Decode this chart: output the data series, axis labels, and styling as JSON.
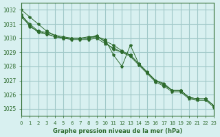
{
  "title": "Graphe pression niveau de la mer (hPa)",
  "bg_color": "#d8f0f0",
  "grid_color": "#a0c8c8",
  "line_color": "#2d6b2d",
  "xlim": [
    0,
    23
  ],
  "ylim": [
    1024.5,
    1032.5
  ],
  "yticks": [
    1025,
    1026,
    1027,
    1028,
    1029,
    1030,
    1031,
    1032
  ],
  "xticks": [
    0,
    1,
    2,
    3,
    4,
    5,
    6,
    7,
    8,
    9,
    10,
    11,
    12,
    13,
    14,
    15,
    16,
    17,
    18,
    19,
    20,
    21,
    22,
    23
  ],
  "series": [
    [
      1032.0,
      1031.5,
      1031.0,
      1030.5,
      1030.2,
      1030.1,
      1030.0,
      1030.0,
      1030.1,
      1030.1,
      1029.9,
      1028.8,
      1028.0,
      1029.5,
      1028.2,
      1027.6,
      1027.0,
      1026.8,
      1026.3,
      1026.3,
      1025.8,
      1025.7,
      1025.7,
      1025.2
    ],
    [
      1031.7,
      1030.8,
      1030.5,
      1030.4,
      1030.2,
      1030.0,
      1030.0,
      1030.0,
      1030.0,
      1030.2,
      1029.7,
      1029.2,
      1029.0,
      1028.8,
      1028.2,
      1027.6,
      1027.0,
      1026.7,
      1026.3,
      1026.3,
      1025.8,
      1025.7,
      1025.7,
      1025.2
    ],
    [
      1031.5,
      1030.9,
      1030.4,
      1030.3,
      1030.1,
      1030.0,
      1029.9,
      1029.9,
      1029.9,
      1030.0,
      1029.6,
      1029.3,
      1029.0,
      1028.7,
      1028.1,
      1027.5,
      1026.9,
      1026.6,
      1026.2,
      1026.2,
      1025.7,
      1025.6,
      1025.6,
      1025.1
    ],
    [
      1031.6,
      1031.0,
      1030.5,
      1030.3,
      1030.1,
      1030.0,
      1030.0,
      1030.0,
      1030.0,
      1030.1,
      1029.8,
      1029.5,
      1029.1,
      1028.8,
      1028.2,
      1027.6,
      1027.0,
      1026.7,
      1026.3,
      1026.3,
      1025.8,
      1025.7,
      1025.7,
      1025.2
    ]
  ]
}
